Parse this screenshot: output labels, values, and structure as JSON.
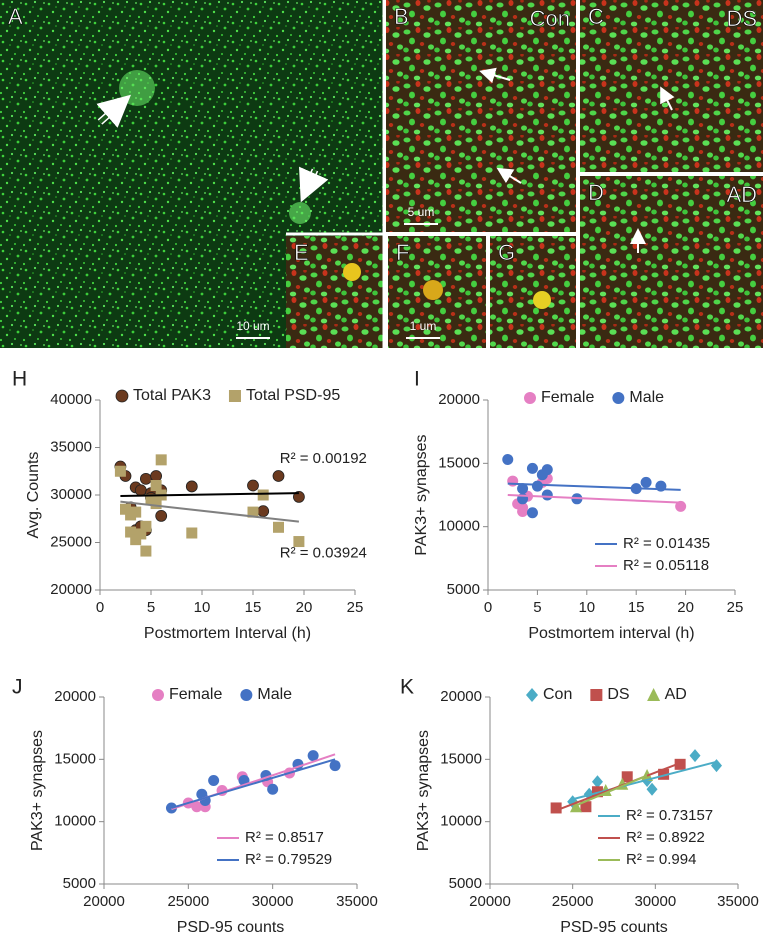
{
  "images": [
    {
      "panel": "A",
      "scale_bar": "10 um"
    },
    {
      "panel": "B",
      "label": "Con",
      "scale_bar": "5 um"
    },
    {
      "panel": "C",
      "label": "DS"
    },
    {
      "panel": "D",
      "label": "AD"
    },
    {
      "panel": "E"
    },
    {
      "panel": "F",
      "scale_bar": "1 um"
    },
    {
      "panel": "G"
    }
  ],
  "chart_data": [
    {
      "type": "scatter",
      "panel": "H",
      "xlabel": "Postmortem Interval (h)",
      "ylabel": "Avg. Counts",
      "xlim": [
        0,
        25
      ],
      "xticks": [
        0,
        5,
        10,
        15,
        20,
        25
      ],
      "ylim": [
        20000,
        40000
      ],
      "yticks": [
        20000,
        25000,
        30000,
        35000,
        40000
      ],
      "legend": "top",
      "series": [
        {
          "name": "Total PAK3",
          "color": "#6b3a1f",
          "marker": "circle",
          "x": [
            2,
            2.5,
            3,
            3.5,
            3.5,
            4,
            4,
            4.5,
            4.5,
            5,
            5,
            5.5,
            6,
            6,
            9,
            15,
            16,
            17.5,
            19.5
          ],
          "values": [
            33000,
            32000,
            28700,
            30800,
            26300,
            26700,
            30500,
            31700,
            26300,
            30200,
            29700,
            32000,
            30500,
            27800,
            30900,
            31000,
            28300,
            32000,
            29800
          ],
          "trendline": {
            "color": "#000000",
            "x": [
              2,
              19.5
            ],
            "values": [
              29900,
              30200
            ],
            "label": "R² = 0.00192"
          }
        },
        {
          "name": "Total PSD-95",
          "color": "#b3a26a",
          "marker": "square",
          "x": [
            2,
            2.5,
            3,
            3,
            3.5,
            3.5,
            4,
            4.5,
            4.5,
            5,
            5.5,
            5.5,
            6,
            6,
            9,
            15,
            16,
            17.5,
            19.5
          ],
          "values": [
            32500,
            28500,
            27900,
            26100,
            25300,
            28200,
            25900,
            24100,
            26700,
            29500,
            31000,
            29100,
            33700,
            30000,
            26000,
            28200,
            30000,
            26600,
            25100
          ],
          "trendline": {
            "color": "#808080",
            "x": [
              2,
              19.5
            ],
            "values": [
              29300,
              27200
            ],
            "label": "R² = 0.03924"
          }
        }
      ]
    },
    {
      "type": "scatter",
      "panel": "I",
      "xlabel": "Postmortem interval (h)",
      "ylabel": "PAK3+ synapses",
      "xlim": [
        0,
        25
      ],
      "xticks": [
        0,
        5,
        10,
        15,
        20,
        25
      ],
      "ylim": [
        5000,
        20000
      ],
      "yticks": [
        5000,
        10000,
        15000,
        20000
      ],
      "legend": "top",
      "trend_legend": "bottom-right",
      "series": [
        {
          "name": "Female",
          "color": "#e57fc3",
          "marker": "circle",
          "x": [
            2.5,
            3,
            3.5,
            3.5,
            4,
            5.5,
            6,
            19.5
          ],
          "values": [
            13600,
            11800,
            11200,
            11500,
            12400,
            13500,
            13800,
            11600
          ],
          "trendline": {
            "color": "#e57fc3",
            "x": [
              2,
              19.5
            ],
            "values": [
              12500,
              11900
            ],
            "label": "R² = 0.05118"
          }
        },
        {
          "name": "Male",
          "color": "#4472c4",
          "marker": "circle",
          "x": [
            2,
            3.5,
            3.5,
            4.5,
            4.5,
            5,
            5.5,
            6,
            6,
            9,
            15,
            16,
            17.5
          ],
          "values": [
            15300,
            13000,
            12200,
            11100,
            14600,
            13200,
            14100,
            14500,
            12500,
            12200,
            13000,
            13500,
            13200
          ],
          "trendline": {
            "color": "#4472c4",
            "x": [
              2,
              19.5
            ],
            "values": [
              13400,
              12900
            ],
            "label": "R² = 0.01435"
          }
        }
      ]
    },
    {
      "type": "scatter",
      "panel": "J",
      "xlabel": "PSD-95 counts",
      "ylabel": "PAK3+ synapses",
      "xlim": [
        20000,
        35000
      ],
      "xticks": [
        20000,
        25000,
        30000,
        35000
      ],
      "ylim": [
        5000,
        20000
      ],
      "yticks": [
        5000,
        10000,
        15000,
        20000
      ],
      "legend": "top",
      "trend_legend": "bottom-right",
      "series": [
        {
          "name": "Female",
          "color": "#e57fc3",
          "marker": "circle",
          "x": [
            25000,
            25500,
            26000,
            27000,
            28200,
            29700,
            31000
          ],
          "values": [
            11500,
            11200,
            11200,
            12500,
            13600,
            13200,
            13900
          ],
          "trendline": {
            "color": "#e57fc3",
            "x": [
              24000,
              33700
            ],
            "values": [
              11000,
              15400
            ],
            "label": "R² = 0.8517"
          }
        },
        {
          "name": "Male",
          "color": "#4472c4",
          "marker": "circle",
          "x": [
            24000,
            25800,
            26000,
            26500,
            28300,
            29600,
            30000,
            31500,
            32400,
            33700
          ],
          "values": [
            11100,
            12200,
            11700,
            13300,
            13300,
            13700,
            12600,
            14600,
            15300,
            14500
          ],
          "trendline": {
            "color": "#4472c4",
            "x": [
              24000,
              33700
            ],
            "values": [
              11100,
              15000
            ],
            "label": "R² = 0.79529"
          }
        }
      ]
    },
    {
      "type": "scatter",
      "panel": "K",
      "xlabel": "PSD-95 counts",
      "ylabel": "PAK3+ synapses",
      "xlim": [
        20000,
        35000
      ],
      "xticks": [
        20000,
        25000,
        30000,
        35000
      ],
      "ylim": [
        5000,
        20000
      ],
      "yticks": [
        5000,
        10000,
        15000,
        20000
      ],
      "legend": "top",
      "trend_legend": "bottom-right",
      "series": [
        {
          "name": "Con",
          "color": "#4bacc6",
          "marker": "diamond",
          "x": [
            25000,
            26000,
            26500,
            29500,
            29800,
            32400,
            33700
          ],
          "values": [
            11600,
            12200,
            13200,
            13300,
            12600,
            15300,
            14500
          ],
          "trendline": {
            "color": "#4bacc6",
            "x": [
              25000,
              33700
            ],
            "values": [
              11800,
              14800
            ],
            "label": "R² = 0.73157"
          }
        },
        {
          "name": "DS",
          "color": "#c0504d",
          "marker": "square",
          "x": [
            24000,
            25800,
            26500,
            28300,
            30500,
            31500
          ],
          "values": [
            11100,
            11200,
            12400,
            13600,
            13800,
            14600
          ],
          "trendline": {
            "color": "#c0504d",
            "x": [
              24000,
              31500
            ],
            "values": [
              10900,
              14700
            ],
            "label": "R² = 0.8922"
          }
        },
        {
          "name": "AD",
          "color": "#9bbb59",
          "marker": "triangle",
          "x": [
            25200,
            27000,
            28000,
            29500
          ],
          "values": [
            11200,
            12500,
            13000,
            13700
          ],
          "trendline": {
            "color": "#9bbb59",
            "x": [
              25200,
              29500
            ],
            "values": [
              11300,
              13700
            ],
            "label": "R² = 0.994"
          }
        }
      ]
    }
  ]
}
